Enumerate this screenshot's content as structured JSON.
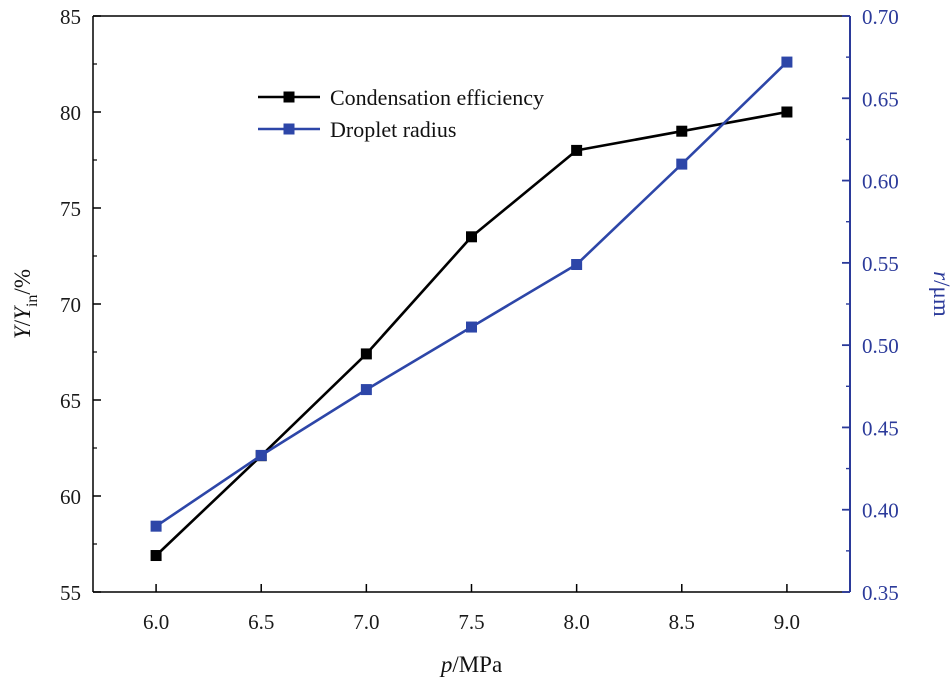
{
  "chart_data": {
    "type": "line",
    "x": [
      6.0,
      6.5,
      7.0,
      7.5,
      8.0,
      8.5,
      9.0
    ],
    "x_tick_labels": [
      "6.0",
      "6.5",
      "7.0",
      "7.5",
      "8.0",
      "8.5",
      "9.0"
    ],
    "xlim": [
      5.7,
      9.3
    ],
    "xlabel": {
      "var": "p",
      "unit": "/MPa"
    },
    "y_left": {
      "label": {
        "var": "Y",
        "sep": "/",
        "var2": "Y",
        "sub": "in",
        "unit": "/%"
      },
      "lim": [
        55,
        85
      ],
      "ticks": [
        55,
        60,
        65,
        70,
        75,
        80,
        85
      ],
      "tick_labels": [
        "55",
        "60",
        "65",
        "70",
        "75",
        "80",
        "85"
      ]
    },
    "y_right": {
      "label": {
        "var": "r",
        "unit": "/μm"
      },
      "lim": [
        0.35,
        0.7
      ],
      "ticks": [
        0.35,
        0.4,
        0.45,
        0.5,
        0.55,
        0.6,
        0.65,
        0.7
      ],
      "tick_labels": [
        "0.35",
        "0.40",
        "0.45",
        "0.50",
        "0.55",
        "0.60",
        "0.65",
        "0.70"
      ]
    },
    "series": [
      {
        "name": "Condensation efficiency",
        "axis": "left",
        "color": "#000000",
        "values": [
          56.9,
          62.1,
          67.4,
          73.5,
          78.0,
          79.0,
          80.0
        ]
      },
      {
        "name": "Droplet radius",
        "axis": "right",
        "color": "#2d46a8",
        "values": [
          0.39,
          0.433,
          0.473,
          0.511,
          0.549,
          0.61,
          0.672
        ]
      }
    ],
    "legend": {
      "position": "top-left"
    },
    "grid": false
  },
  "colors": {
    "right_axis": "#2b3a9a",
    "left_axis": "#000000"
  }
}
